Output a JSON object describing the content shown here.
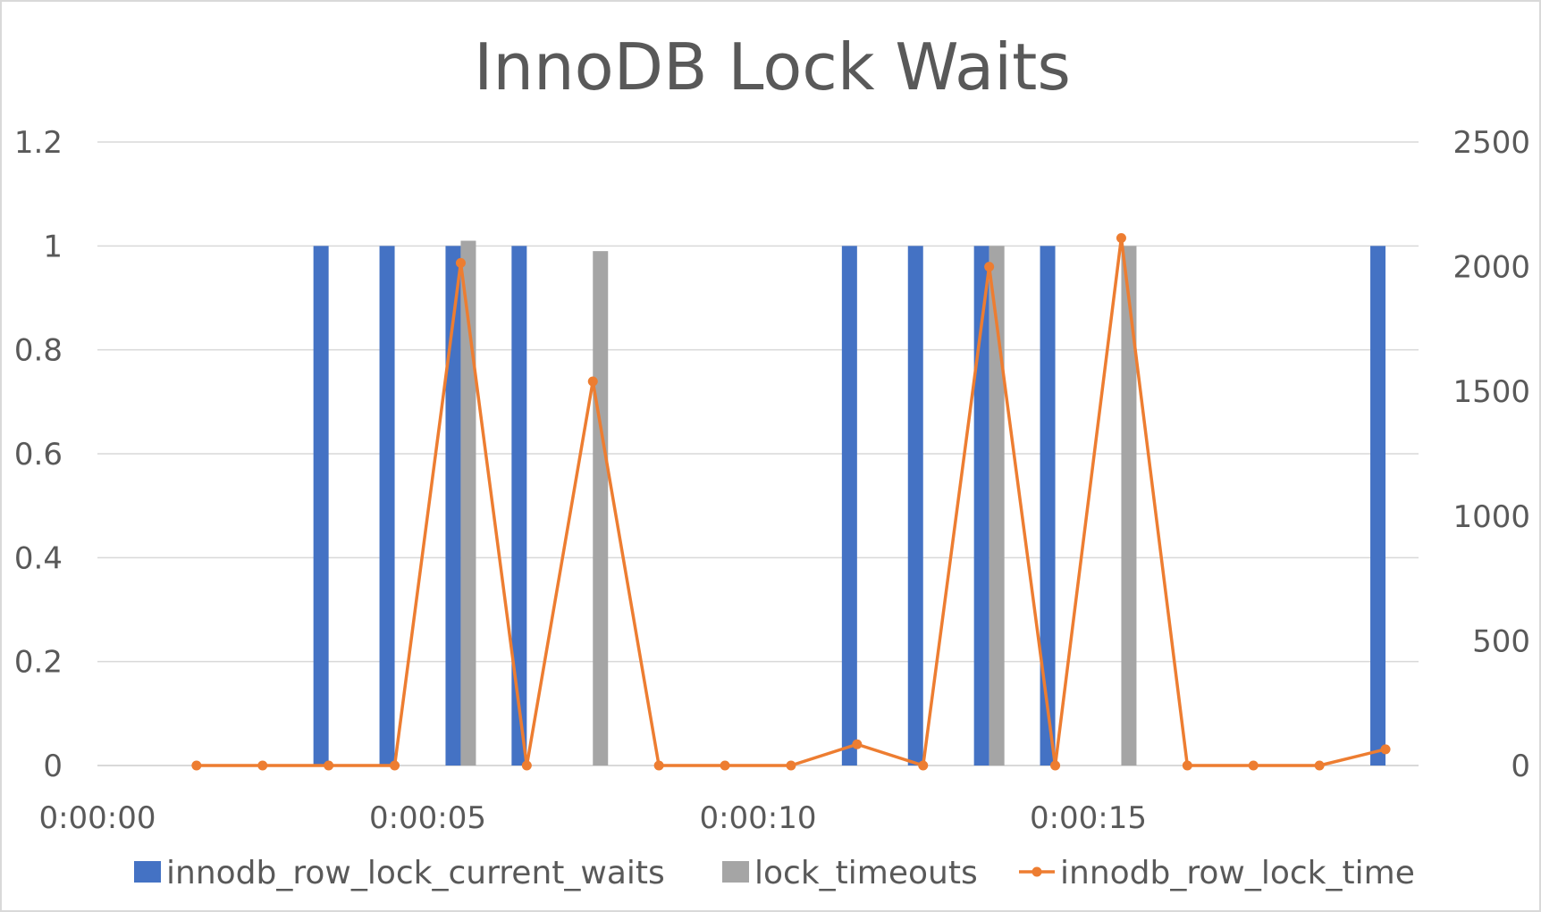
{
  "chart_data": {
    "type": "bar",
    "title": "InnoDB Lock Waits",
    "x": [
      "0:00:00",
      "0:00:01",
      "0:00:02",
      "0:00:03",
      "0:00:04",
      "0:00:05",
      "0:00:06",
      "0:00:07",
      "0:00:08",
      "0:00:09",
      "0:00:10",
      "0:00:11",
      "0:00:12",
      "0:00:13",
      "0:00:14",
      "0:00:15",
      "0:00:16",
      "0:00:17",
      "0:00:18",
      "0:00:19"
    ],
    "x_tick_labels": [
      "0:00:00",
      "0:00:05",
      "0:00:10",
      "0:00:15"
    ],
    "x_tick_indices": [
      0,
      5,
      10,
      15
    ],
    "y_left": {
      "ylim": [
        0,
        1.2
      ],
      "ticks": [
        "0",
        "0.2",
        "0.4",
        "0.6",
        "0.8",
        "1",
        "1.2"
      ],
      "tick_values": [
        0,
        0.2,
        0.4,
        0.6,
        0.8,
        1,
        1.2
      ]
    },
    "y_right": {
      "ylim": [
        0,
        2500
      ],
      "ticks": [
        "0",
        "500",
        "1000",
        "1500",
        "2000",
        "2500"
      ],
      "tick_values": [
        0,
        500,
        1000,
        1500,
        2000,
        2500
      ]
    },
    "grid": true,
    "legend_position": "bottom",
    "series": [
      {
        "name": "innodb_row_lock_current_waits",
        "type": "bar",
        "axis": "left",
        "color": "#4472c4",
        "values": [
          null,
          null,
          null,
          1,
          1,
          1,
          1,
          null,
          null,
          null,
          null,
          1,
          1,
          1,
          1,
          null,
          null,
          null,
          null,
          1
        ]
      },
      {
        "name": "lock_timeouts",
        "type": "bar",
        "axis": "left",
        "color": "#a5a5a5",
        "values": [
          null,
          null,
          null,
          null,
          null,
          1.01,
          null,
          0.99,
          null,
          null,
          null,
          null,
          null,
          1,
          null,
          1,
          null,
          null,
          null,
          null
        ]
      },
      {
        "name": "innodb_row_lock_time",
        "type": "line",
        "axis": "right",
        "color": "#ed7d31",
        "values": [
          null,
          0,
          0,
          0,
          0,
          2015,
          0,
          1540,
          0,
          0,
          0,
          85,
          0,
          2000,
          0,
          2115,
          0,
          0,
          0,
          65
        ]
      }
    ]
  }
}
